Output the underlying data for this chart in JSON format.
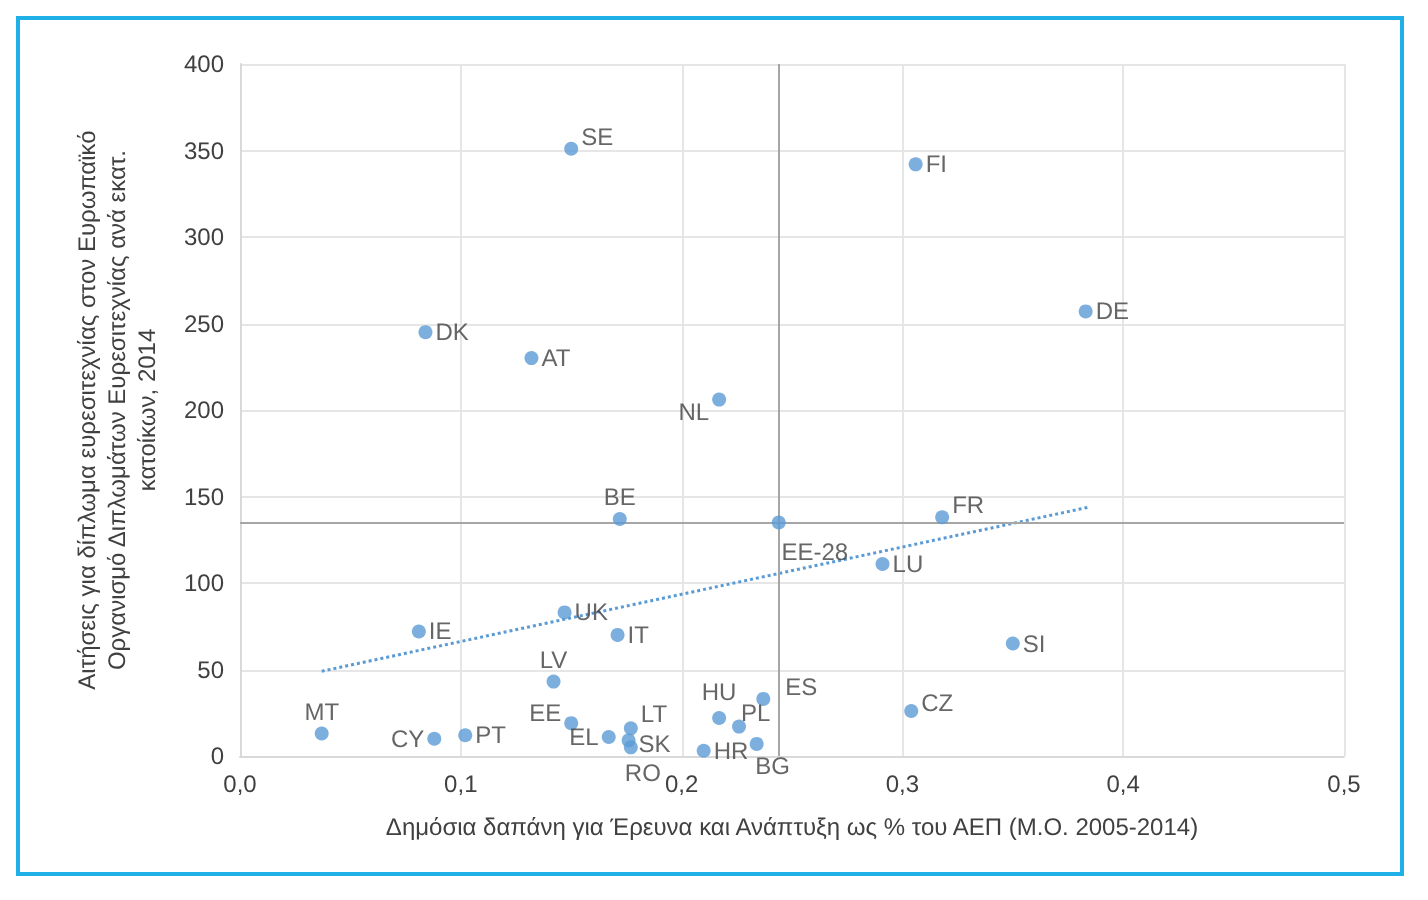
{
  "chart_data": {
    "type": "scatter",
    "xlabel": "Δημόσια δαπάνη για Έρευνα και Ανάπτυξη ως % του ΑΕΠ (Μ.Ο. 2005-2014)",
    "ylabel": "Αιτήσεις για δίπλωμα ευρεσιτεχνίας στον Ευρωπαϊκό Οργανισμό Διπλωμάτων Ευρεσιτεχνίας ανά εκατ. κατοίκων, 2014",
    "xlim": [
      0,
      0.5
    ],
    "xticks": [
      {
        "value": 0,
        "label": "0,0"
      },
      {
        "value": 0.1,
        "label": "0,1"
      },
      {
        "value": 0.2,
        "label": "0,2"
      },
      {
        "value": 0.3,
        "label": "0,3"
      },
      {
        "value": 0.4,
        "label": "0,4"
      },
      {
        "value": 0.5,
        "label": "0,5"
      }
    ],
    "ylim": [
      0,
      400
    ],
    "yticks": [
      0,
      50,
      100,
      150,
      200,
      250,
      300,
      350,
      400
    ],
    "grid": true,
    "series": [
      {
        "color": "#5b9bd5",
        "marker": "circle",
        "x": [
          0.15,
          0.306,
          0.383,
          0.084,
          0.132,
          0.217,
          0.172,
          0.244,
          0.318,
          0.291,
          0.35,
          0.147,
          0.081,
          0.171,
          0.142,
          0.037,
          0.088,
          0.102,
          0.15,
          0.167,
          0.177,
          0.176,
          0.177,
          0.217,
          0.21,
          0.226,
          0.234,
          0.237,
          0.304
        ],
        "values": [
          351,
          342,
          257,
          245,
          230,
          206,
          137,
          135,
          138,
          111,
          65,
          83,
          72,
          70,
          43,
          13,
          10,
          12,
          19,
          11,
          16,
          9,
          5,
          22,
          3,
          17,
          7,
          33,
          26
        ]
      },
      {
        "type": "line",
        "color": "#5b9bd5",
        "marker": "none",
        "line_style": "dotted",
        "x": [
          0.037,
          0.385
        ],
        "values": [
          49,
          144
        ]
      }
    ],
    "ref_lines": [
      {
        "axis": "x",
        "value": 0.244,
        "color": "#a6a6a6"
      },
      {
        "axis": "y",
        "value": 135,
        "color": "#a6a6a6"
      }
    ],
    "annotations": [
      {
        "text": "SE",
        "x": 0.15,
        "y": 351
      },
      {
        "text": "FI",
        "x": 0.306,
        "y": 342
      },
      {
        "text": "DE",
        "x": 0.383,
        "y": 257
      },
      {
        "text": "DK",
        "x": 0.084,
        "y": 245
      },
      {
        "text": "AT",
        "x": 0.132,
        "y": 230
      },
      {
        "text": "NL",
        "x": 0.217,
        "y": 206
      },
      {
        "text": "BE",
        "x": 0.172,
        "y": 137
      },
      {
        "text": "EE-28",
        "x": 0.244,
        "y": 135
      },
      {
        "text": "FR",
        "x": 0.318,
        "y": 138
      },
      {
        "text": "LU",
        "x": 0.291,
        "y": 111
      },
      {
        "text": "SI",
        "x": 0.35,
        "y": 65
      },
      {
        "text": "UK",
        "x": 0.147,
        "y": 83
      },
      {
        "text": "IE",
        "x": 0.081,
        "y": 72
      },
      {
        "text": "IT",
        "x": 0.171,
        "y": 70
      },
      {
        "text": "LV",
        "x": 0.142,
        "y": 43
      },
      {
        "text": "MT",
        "x": 0.037,
        "y": 13
      },
      {
        "text": "CY",
        "x": 0.088,
        "y": 10
      },
      {
        "text": "PT",
        "x": 0.102,
        "y": 12
      },
      {
        "text": "EE",
        "x": 0.15,
        "y": 19
      },
      {
        "text": "EL",
        "x": 0.167,
        "y": 11
      },
      {
        "text": "LT",
        "x": 0.177,
        "y": 16
      },
      {
        "text": "SK",
        "x": 0.176,
        "y": 9
      },
      {
        "text": "RO",
        "x": 0.177,
        "y": 5
      },
      {
        "text": "HU",
        "x": 0.217,
        "y": 22
      },
      {
        "text": "HR",
        "x": 0.21,
        "y": 3
      },
      {
        "text": "PL",
        "x": 0.226,
        "y": 17
      },
      {
        "text": "BG",
        "x": 0.234,
        "y": 7
      },
      {
        "text": "ES",
        "x": 0.237,
        "y": 33
      },
      {
        "text": "CZ",
        "x": 0.304,
        "y": 26
      }
    ]
  }
}
